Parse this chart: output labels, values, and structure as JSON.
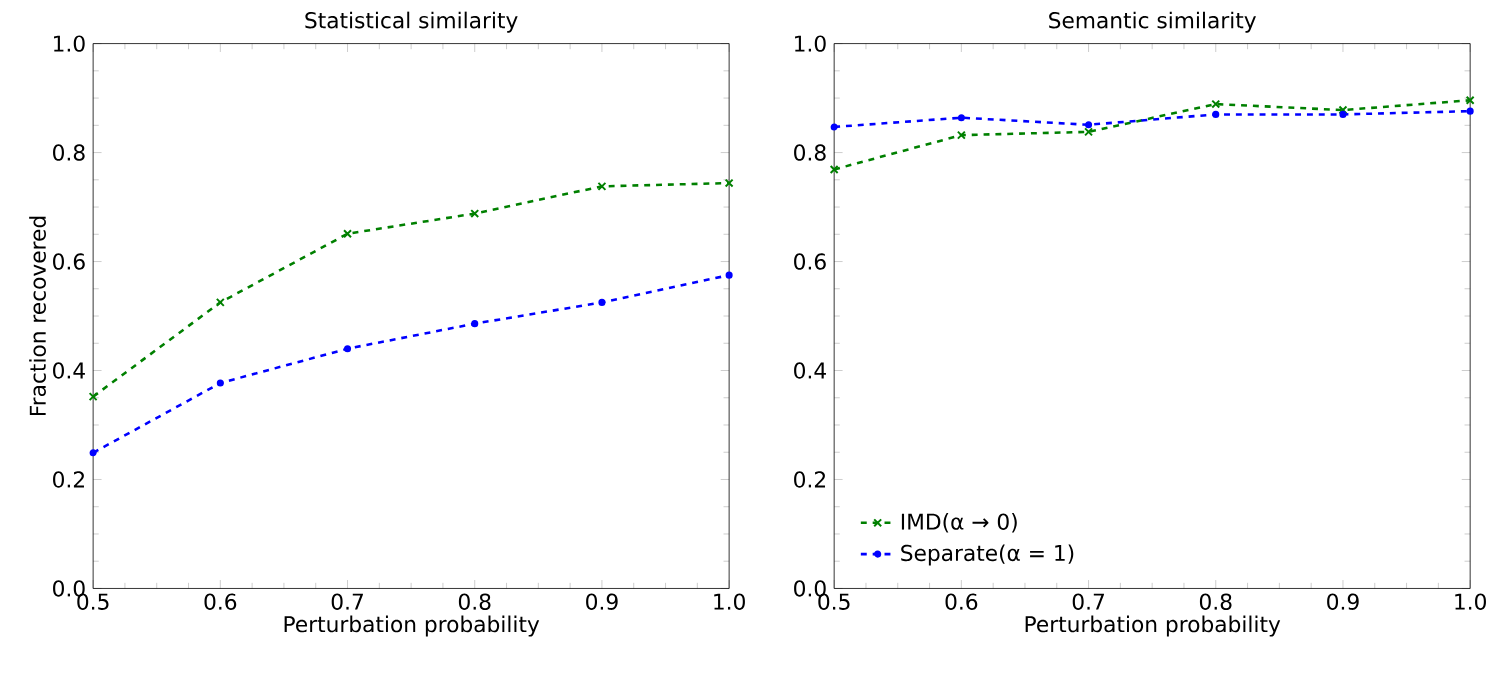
{
  "chart_data": [
    {
      "type": "line",
      "title": "Statistical similarity",
      "xlabel": "Perturbation probability",
      "ylabel": "Fraction recovered",
      "x": [
        0.5,
        0.6,
        0.7,
        0.8,
        0.9,
        1.0
      ],
      "series": [
        {
          "color": "#008000",
          "marker": "cross",
          "line_style": "dashed",
          "values": [
            0.352,
            0.525,
            0.651,
            0.688,
            0.738,
            0.744
          ]
        },
        {
          "color": "#0000ff",
          "marker": "circle",
          "line_style": "dashed",
          "values": [
            0.249,
            0.377,
            0.44,
            0.486,
            0.525,
            0.575
          ]
        }
      ],
      "xlim": [
        0.5,
        1.0
      ],
      "ylim": [
        0.0,
        1.0
      ],
      "xticks": [
        {
          "value": 0.5,
          "label": "0.5"
        },
        {
          "value": 0.6,
          "label": "0.6"
        },
        {
          "value": 0.7,
          "label": "0.7"
        },
        {
          "value": 0.8,
          "label": "0.8"
        },
        {
          "value": 0.9,
          "label": "0.9"
        },
        {
          "value": 1.0,
          "label": "1.0"
        }
      ],
      "yticks": [
        {
          "value": 0.0,
          "label": "0.0"
        },
        {
          "value": 0.2,
          "label": "0.2"
        },
        {
          "value": 0.4,
          "label": "0.4"
        },
        {
          "value": 0.6,
          "label": "0.6"
        },
        {
          "value": 0.8,
          "label": "0.8"
        },
        {
          "value": 1.0,
          "label": "1.0"
        }
      ]
    },
    {
      "type": "line",
      "title": "Semantic similarity",
      "xlabel": "Perturbation probability",
      "legend": "bottom left",
      "x": [
        0.5,
        0.6,
        0.7,
        0.8,
        0.9,
        1.0
      ],
      "series": [
        {
          "name": "IMD(α → 0)",
          "color": "#008000",
          "marker": "cross",
          "line_style": "dashed",
          "values": [
            0.769,
            0.832,
            0.838,
            0.889,
            0.878,
            0.896
          ]
        },
        {
          "name": "Separate(α = 1)",
          "color": "#0000ff",
          "marker": "circle",
          "line_style": "dashed",
          "values": [
            0.847,
            0.864,
            0.851,
            0.87,
            0.87,
            0.876
          ]
        }
      ],
      "xlim": [
        0.5,
        1.0
      ],
      "ylim": [
        0.0,
        1.0
      ],
      "xticks": [
        {
          "value": 0.5,
          "label": "0.5"
        },
        {
          "value": 0.6,
          "label": "0.6"
        },
        {
          "value": 0.7,
          "label": "0.7"
        },
        {
          "value": 0.8,
          "label": "0.8"
        },
        {
          "value": 0.9,
          "label": "0.9"
        },
        {
          "value": 1.0,
          "label": "1.0"
        }
      ],
      "yticks": [
        {
          "value": 0.0,
          "label": "0.0"
        },
        {
          "value": 0.2,
          "label": "0.2"
        },
        {
          "value": 0.4,
          "label": "0.4"
        },
        {
          "value": 0.6,
          "label": "0.6"
        },
        {
          "value": 0.8,
          "label": "0.8"
        },
        {
          "value": 1.0,
          "label": "1.0"
        }
      ]
    }
  ]
}
